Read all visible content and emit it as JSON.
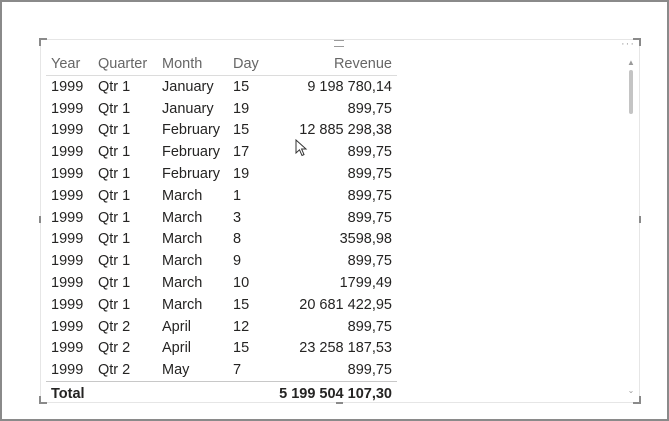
{
  "table": {
    "headers": [
      "Year",
      "Quarter",
      "Month",
      "Day",
      "Revenue"
    ],
    "rows": [
      [
        "1999",
        "Qtr 1",
        "January",
        "15",
        "9 198 780,14"
      ],
      [
        "1999",
        "Qtr 1",
        "January",
        "19",
        "899,75"
      ],
      [
        "1999",
        "Qtr 1",
        "February",
        "15",
        "12 885 298,38"
      ],
      [
        "1999",
        "Qtr 1",
        "February",
        "17",
        "899,75"
      ],
      [
        "1999",
        "Qtr 1",
        "February",
        "19",
        "899,75"
      ],
      [
        "1999",
        "Qtr 1",
        "March",
        "1",
        "899,75"
      ],
      [
        "1999",
        "Qtr 1",
        "March",
        "3",
        "899,75"
      ],
      [
        "1999",
        "Qtr 1",
        "March",
        "8",
        "3598,98"
      ],
      [
        "1999",
        "Qtr 1",
        "March",
        "9",
        "899,75"
      ],
      [
        "1999",
        "Qtr 1",
        "March",
        "10",
        "1799,49"
      ],
      [
        "1999",
        "Qtr 1",
        "March",
        "15",
        "20 681 422,95"
      ],
      [
        "1999",
        "Qtr 2",
        "April",
        "12",
        "899,75"
      ],
      [
        "1999",
        "Qtr 2",
        "April",
        "15",
        "23 258 187,53"
      ],
      [
        "1999",
        "Qtr 2",
        "May",
        "7",
        "899,75"
      ]
    ],
    "total_label": "Total",
    "total_value": "5 199 504 107,30"
  },
  "icons": {
    "drag_grip": "drag-handle-icon",
    "more": "more-options-icon",
    "scroll_up": "chevron-up-icon",
    "scroll_down": "chevron-down-icon",
    "cursor": "mouse-pointer-icon"
  },
  "colors": {
    "header_text": "#666666",
    "body_text": "#252423",
    "frame_border": "#8a8a8a"
  }
}
